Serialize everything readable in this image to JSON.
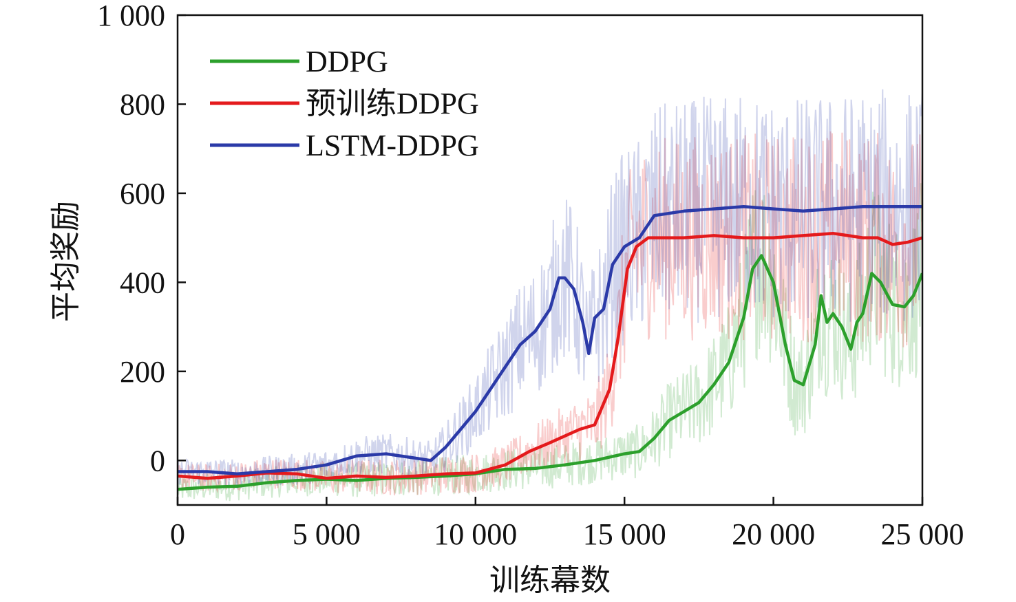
{
  "chart_data": {
    "type": "line",
    "xlabel": "训练幕数",
    "ylabel": "平均奖励",
    "xlim": [
      0,
      25000
    ],
    "ylim": [
      -100,
      1000
    ],
    "xticks": [
      0,
      5000,
      10000,
      15000,
      20000,
      25000
    ],
    "xtick_labels": [
      "0",
      "5 000",
      "10 000",
      "15 000",
      "20 000",
      "25 000"
    ],
    "yticks": [
      0,
      200,
      400,
      600,
      800,
      1000
    ],
    "ytick_labels": [
      "0",
      "200",
      "400",
      "600",
      "800",
      "1 000"
    ],
    "grid": false,
    "legend_position": "top-left",
    "series": [
      {
        "name": "DDPG",
        "color": "#2ca02c",
        "x": [
          0,
          1000,
          2000,
          3000,
          4000,
          5000,
          6000,
          7000,
          8000,
          9000,
          10000,
          11000,
          12000,
          13000,
          14000,
          15000,
          15500,
          16000,
          16500,
          17000,
          17500,
          18000,
          18500,
          19000,
          19300,
          19600,
          20000,
          20400,
          20700,
          21000,
          21400,
          21600,
          21800,
          22000,
          22300,
          22600,
          22800,
          23000,
          23300,
          23600,
          24000,
          24400,
          24700,
          25000
        ],
        "y": [
          -65,
          -60,
          -58,
          -50,
          -45,
          -42,
          -45,
          -40,
          -38,
          -35,
          -30,
          -20,
          -18,
          -10,
          0,
          15,
          20,
          50,
          90,
          110,
          130,
          170,
          220,
          320,
          430,
          460,
          400,
          260,
          180,
          170,
          260,
          370,
          310,
          330,
          300,
          250,
          310,
          330,
          420,
          400,
          350,
          345,
          370,
          420
        ]
      },
      {
        "name": "预训练DDPG",
        "color": "#e41a1c",
        "x": [
          0,
          1000,
          2000,
          3000,
          4000,
          5000,
          6000,
          7000,
          8000,
          9000,
          10000,
          11000,
          11800,
          12500,
          13000,
          13500,
          14000,
          14500,
          14800,
          15100,
          15400,
          15800,
          16500,
          17000,
          18000,
          19000,
          20000,
          21000,
          22000,
          22500,
          23000,
          23500,
          24000,
          24500,
          25000
        ],
        "y": [
          -35,
          -40,
          -35,
          -28,
          -30,
          -40,
          -35,
          -38,
          -35,
          -30,
          -28,
          -10,
          20,
          40,
          55,
          70,
          80,
          160,
          280,
          430,
          480,
          500,
          500,
          500,
          505,
          500,
          500,
          505,
          510,
          505,
          500,
          500,
          485,
          490,
          500
        ]
      },
      {
        "name": "LSTM-DDPG",
        "color": "#2b3aa8",
        "x": [
          0,
          1000,
          2000,
          3000,
          4000,
          5000,
          6000,
          7000,
          8000,
          8500,
          9000,
          9500,
          10000,
          10500,
          11000,
          11500,
          12000,
          12500,
          12800,
          13000,
          13300,
          13600,
          13800,
          14000,
          14300,
          14600,
          15000,
          15500,
          16000,
          17000,
          18000,
          19000,
          20000,
          21000,
          22000,
          23000,
          24000,
          25000
        ],
        "y": [
          -25,
          -25,
          -30,
          -25,
          -20,
          -10,
          10,
          15,
          5,
          0,
          30,
          70,
          110,
          160,
          210,
          260,
          290,
          340,
          410,
          410,
          385,
          310,
          240,
          320,
          340,
          440,
          480,
          500,
          550,
          560,
          565,
          570,
          565,
          560,
          565,
          570,
          570,
          570
        ]
      }
    ]
  }
}
